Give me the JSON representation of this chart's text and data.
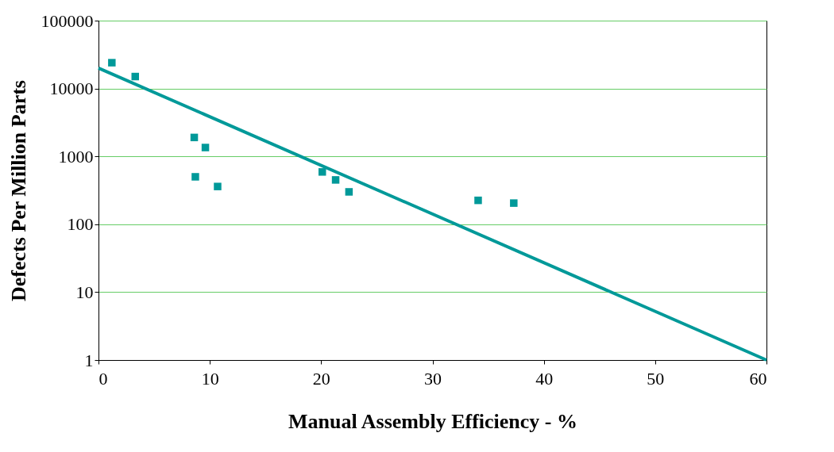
{
  "chart_data": {
    "type": "scatter",
    "xlabel": "Manual Assembly Efficiency - %",
    "ylabel": "Defects Per Million Parts",
    "log": "y",
    "grid": "y",
    "legend": false,
    "xlim": [
      0,
      60
    ],
    "xticks": [
      0,
      10,
      20,
      30,
      40,
      50,
      60
    ],
    "ylim": [
      1,
      100000
    ],
    "yticks": [
      1,
      10,
      100,
      1000,
      10000,
      100000
    ],
    "series": [
      {
        "color": "#009999",
        "marker": "square",
        "x": [
          1.2,
          3.3,
          8.6,
          9.6,
          8.7,
          10.7,
          20.1,
          21.3,
          22.5,
          34.1,
          37.3
        ],
        "values": [
          24000,
          15000,
          1900,
          1350,
          500,
          360,
          590,
          450,
          300,
          225,
          205
        ]
      },
      {
        "type": "line",
        "color": "#009999",
        "x": [
          0,
          60
        ],
        "values": [
          20000,
          1
        ]
      }
    ]
  }
}
